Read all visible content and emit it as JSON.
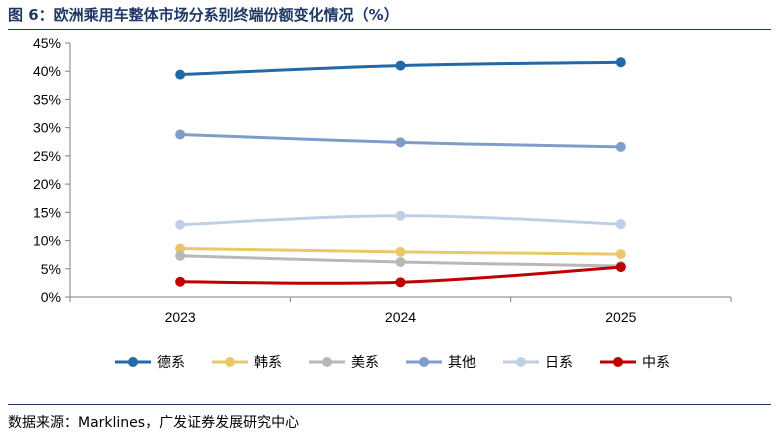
{
  "title": "图 6：欧洲乘用车整体市场分系别终端份额变化情况（%）",
  "source": "数据来源：Marklines，广发证券发展研究中心",
  "chart_data": {
    "type": "line",
    "title": "",
    "xlabel": "",
    "ylabel": "",
    "x": [
      "2023",
      "2024",
      "2025"
    ],
    "ylim": [
      0,
      45
    ],
    "yticks": [
      "0%",
      "5%",
      "10%",
      "15%",
      "20%",
      "25%",
      "30%",
      "35%",
      "40%",
      "45%"
    ],
    "grid": false,
    "legend_position": "bottom",
    "series": [
      {
        "name": "德系",
        "color": "#2369a8",
        "values": [
          39.4,
          41.0,
          41.6
        ]
      },
      {
        "name": "韩系",
        "color": "#e7c96a",
        "values": [
          8.6,
          8.0,
          7.6
        ]
      },
      {
        "name": "美系",
        "color": "#b8b8b8",
        "values": [
          7.3,
          6.2,
          5.5
        ]
      },
      {
        "name": "其他",
        "color": "#7f9dc9",
        "values": [
          28.8,
          27.4,
          26.6
        ]
      },
      {
        "name": "日系",
        "color": "#bfd0e6",
        "values": [
          12.8,
          14.4,
          12.9
        ]
      },
      {
        "name": "中系",
        "color": "#c00000",
        "values": [
          2.7,
          2.6,
          5.3
        ]
      }
    ]
  }
}
